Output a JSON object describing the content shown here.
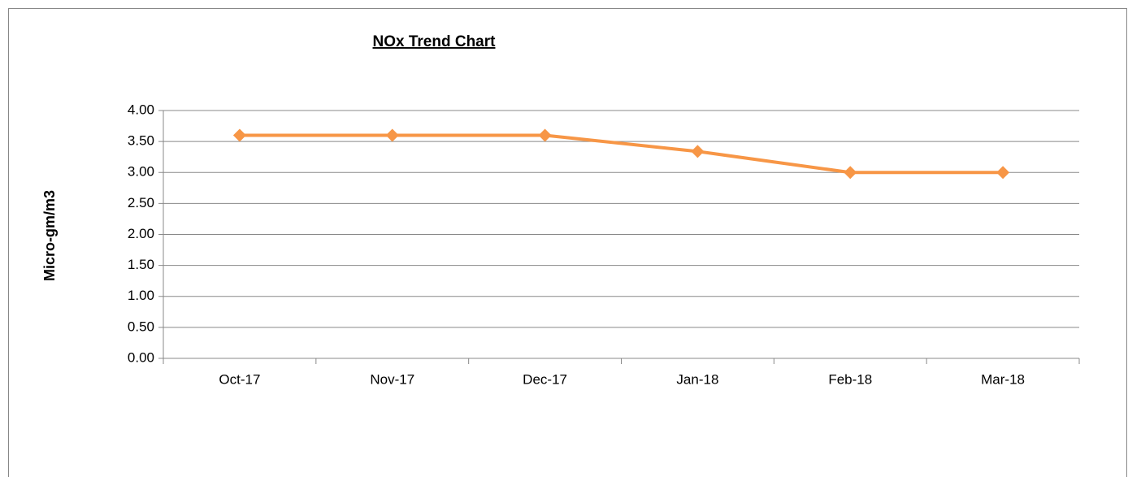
{
  "chart_data": {
    "type": "line",
    "title": "NOx Trend Chart",
    "y_label": "Micro-gm/m3",
    "categories": [
      "Oct-17",
      "Nov-17",
      "Dec-17",
      "Jan-18",
      "Feb-18",
      "Mar-18"
    ],
    "values": [
      3.6,
      3.6,
      3.6,
      3.34,
      3.0,
      3.0
    ],
    "color": "#f79646",
    "ylim": [
      0,
      4
    ],
    "yticks": [
      {
        "value": 0,
        "label": "0.00"
      },
      {
        "value": 0.5,
        "label": "0.50"
      },
      {
        "value": 1,
        "label": "1.00"
      },
      {
        "value": 1.5,
        "label": "1.50"
      },
      {
        "value": 2,
        "label": "2.00"
      },
      {
        "value": 2.5,
        "label": "2.50"
      },
      {
        "value": 3,
        "label": "3.00"
      },
      {
        "value": 3.5,
        "label": "3.50"
      },
      {
        "value": 4,
        "label": "4.00"
      }
    ],
    "grid": true
  }
}
